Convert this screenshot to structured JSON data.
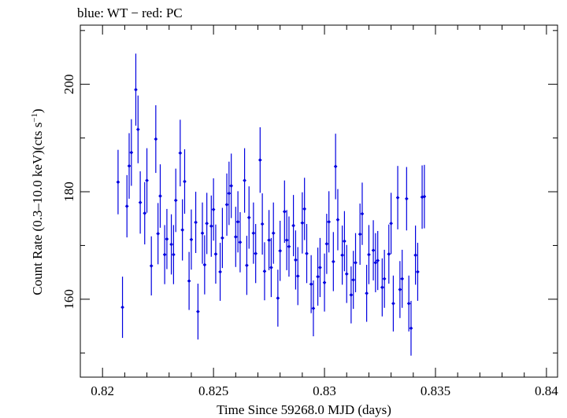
{
  "chart_data": {
    "type": "scatter",
    "title": "blue: WT − red: PC",
    "xlabel": "Time Since 59268.0 MJD (days)",
    "ylabel": "Count Rate (0.3–10.0 keV)(cts s",
    "ylabel_sup": "−1",
    "ylabel_tail": ")",
    "xlim": [
      0.819,
      0.8405
    ],
    "ylim": [
      145.5,
      211.0
    ],
    "xticks": [
      {
        "v": 0.82,
        "label": "0.82"
      },
      {
        "v": 0.825,
        "label": "0.825"
      },
      {
        "v": 0.83,
        "label": "0.83"
      },
      {
        "v": 0.835,
        "label": "0.835"
      },
      {
        "v": 0.84,
        "label": "0.84"
      }
    ],
    "yticks": [
      {
        "v": 160,
        "label": "160"
      },
      {
        "v": 180,
        "label": "180"
      },
      {
        "v": 200,
        "label": "200"
      }
    ],
    "grid": false,
    "series": [
      {
        "name": "WT",
        "color": "#0000e0",
        "points": [
          [
            0.8207,
            181.8,
            6.0
          ],
          [
            0.8209,
            158.5,
            5.7
          ],
          [
            0.8211,
            177.3,
            5.8
          ],
          [
            0.8212,
            184.8,
            6.1
          ],
          [
            0.8213,
            187.3,
            6.2
          ],
          [
            0.8215,
            199.0,
            6.7
          ],
          [
            0.8216,
            191.6,
            6.3
          ],
          [
            0.8217,
            178.0,
            5.8
          ],
          [
            0.8219,
            176.0,
            5.8
          ],
          [
            0.822,
            182.1,
            6.0
          ],
          [
            0.8222,
            166.2,
            5.5
          ],
          [
            0.8224,
            189.8,
            6.3
          ],
          [
            0.8225,
            172.2,
            5.7
          ],
          [
            0.8226,
            179.2,
            5.9
          ],
          [
            0.8228,
            168.3,
            5.5
          ],
          [
            0.8229,
            171.2,
            5.6
          ],
          [
            0.8231,
            170.2,
            5.6
          ],
          [
            0.8232,
            168.3,
            5.5
          ],
          [
            0.8233,
            178.4,
            5.9
          ],
          [
            0.8235,
            187.2,
            6.2
          ],
          [
            0.8236,
            172.9,
            5.7
          ],
          [
            0.8237,
            181.9,
            6.0
          ],
          [
            0.8239,
            163.4,
            5.4
          ],
          [
            0.824,
            171.1,
            5.6
          ],
          [
            0.8242,
            174.3,
            5.7
          ],
          [
            0.8243,
            157.7,
            5.2
          ],
          [
            0.8245,
            172.3,
            5.7
          ],
          [
            0.8246,
            166.4,
            5.5
          ],
          [
            0.8247,
            174.1,
            5.7
          ],
          [
            0.8249,
            173.6,
            5.7
          ],
          [
            0.825,
            176.7,
            5.8
          ],
          [
            0.8251,
            168.4,
            5.5
          ],
          [
            0.8253,
            165.1,
            5.4
          ],
          [
            0.8254,
            171.4,
            5.6
          ],
          [
            0.8256,
            177.6,
            5.8
          ],
          [
            0.8257,
            179.7,
            5.9
          ],
          [
            0.8258,
            181.1,
            6.0
          ],
          [
            0.826,
            171.6,
            5.6
          ],
          [
            0.8261,
            174.4,
            5.7
          ],
          [
            0.8262,
            170.6,
            5.6
          ],
          [
            0.8264,
            182.1,
            6.0
          ],
          [
            0.8265,
            166.3,
            5.5
          ],
          [
            0.8266,
            175.2,
            5.8
          ],
          [
            0.8268,
            172.3,
            5.7
          ],
          [
            0.8269,
            168.5,
            5.5
          ],
          [
            0.8271,
            185.9,
            6.1
          ],
          [
            0.8272,
            174.0,
            5.7
          ],
          [
            0.8273,
            165.2,
            5.4
          ],
          [
            0.8275,
            171.0,
            5.6
          ],
          [
            0.8276,
            165.9,
            5.5
          ],
          [
            0.8277,
            172.3,
            5.7
          ],
          [
            0.8279,
            160.2,
            5.3
          ],
          [
            0.828,
            169.0,
            5.6
          ],
          [
            0.8282,
            176.3,
            5.8
          ],
          [
            0.8283,
            171.0,
            5.6
          ],
          [
            0.8284,
            169.8,
            5.6
          ],
          [
            0.8286,
            173.7,
            5.7
          ],
          [
            0.8287,
            167.3,
            5.5
          ],
          [
            0.8288,
            164.3,
            5.4
          ],
          [
            0.829,
            174.2,
            5.7
          ],
          [
            0.8291,
            176.8,
            5.8
          ],
          [
            0.8292,
            168.5,
            5.5
          ],
          [
            0.8294,
            162.8,
            5.4
          ],
          [
            0.8295,
            158.3,
            5.2
          ],
          [
            0.8297,
            164.2,
            5.4
          ],
          [
            0.8298,
            165.9,
            5.5
          ],
          [
            0.83,
            163.1,
            5.4
          ],
          [
            0.8301,
            170.3,
            5.6
          ],
          [
            0.8302,
            174.4,
            5.7
          ],
          [
            0.8304,
            167.0,
            5.5
          ],
          [
            0.8305,
            184.7,
            6.1
          ],
          [
            0.8306,
            174.8,
            5.7
          ],
          [
            0.8308,
            168.2,
            5.5
          ],
          [
            0.8309,
            170.8,
            5.6
          ],
          [
            0.831,
            164.7,
            5.4
          ],
          [
            0.8312,
            160.8,
            5.3
          ],
          [
            0.8313,
            163.6,
            5.4
          ],
          [
            0.8314,
            166.8,
            5.5
          ],
          [
            0.8316,
            172.1,
            5.7
          ],
          [
            0.8317,
            175.9,
            5.8
          ],
          [
            0.8319,
            161.1,
            5.3
          ],
          [
            0.832,
            168.3,
            5.5
          ],
          [
            0.8322,
            169.1,
            5.6
          ],
          [
            0.8323,
            166.8,
            5.5
          ],
          [
            0.8324,
            167.2,
            5.5
          ],
          [
            0.8326,
            162.2,
            5.4
          ],
          [
            0.8327,
            163.8,
            5.4
          ],
          [
            0.8329,
            168.4,
            5.5
          ],
          [
            0.833,
            174.1,
            5.7
          ],
          [
            0.8331,
            159.2,
            5.2
          ],
          [
            0.8333,
            178.9,
            5.9
          ],
          [
            0.8334,
            161.8,
            5.3
          ],
          [
            0.8335,
            163.8,
            5.4
          ],
          [
            0.8337,
            178.7,
            5.9
          ],
          [
            0.8338,
            159.2,
            5.2
          ],
          [
            0.8339,
            154.6,
            5.1
          ],
          [
            0.8341,
            168.2,
            5.5
          ],
          [
            0.8342,
            165.1,
            5.4
          ],
          [
            0.8344,
            179.0,
            5.9
          ],
          [
            0.8345,
            179.1,
            5.9
          ]
        ]
      }
    ]
  }
}
